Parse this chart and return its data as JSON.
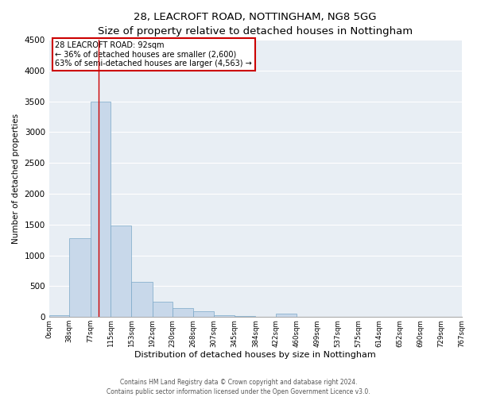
{
  "title": "28, LEACROFT ROAD, NOTTINGHAM, NG8 5GG",
  "subtitle": "Size of property relative to detached houses in Nottingham",
  "xlabel": "Distribution of detached houses by size in Nottingham",
  "ylabel": "Number of detached properties",
  "bar_color": "#c8d8ea",
  "bar_edge_color": "#7aa8c8",
  "background_color": "#e8eef4",
  "grid_color": "#ffffff",
  "redline_x": 92,
  "annotation_title": "28 LEACROFT ROAD: 92sqm",
  "annotation_line1": "← 36% of detached houses are smaller (2,600)",
  "annotation_line2": "63% of semi-detached houses are larger (4,563) →",
  "annotation_box_color": "#ffffff",
  "annotation_box_edge": "#cc0000",
  "redline_color": "#cc0000",
  "bin_edges": [
    0,
    38,
    77,
    115,
    153,
    192,
    230,
    268,
    307,
    345,
    384,
    422,
    460,
    499,
    537,
    575,
    614,
    652,
    690,
    729,
    767
  ],
  "bin_labels": [
    "0sqm",
    "38sqm",
    "77sqm",
    "115sqm",
    "153sqm",
    "192sqm",
    "230sqm",
    "268sqm",
    "307sqm",
    "345sqm",
    "384sqm",
    "422sqm",
    "460sqm",
    "499sqm",
    "537sqm",
    "575sqm",
    "614sqm",
    "652sqm",
    "690sqm",
    "729sqm",
    "767sqm"
  ],
  "bar_heights": [
    30,
    1280,
    3500,
    1480,
    570,
    250,
    145,
    90,
    30,
    15,
    5,
    55,
    0,
    0,
    0,
    0,
    0,
    0,
    0,
    0
  ],
  "ylim": [
    0,
    4500
  ],
  "yticks": [
    0,
    500,
    1000,
    1500,
    2000,
    2500,
    3000,
    3500,
    4000,
    4500
  ],
  "footer1": "Contains HM Land Registry data © Crown copyright and database right 2024.",
  "footer2": "Contains public sector information licensed under the Open Government Licence v3.0.",
  "title_fontsize": 9.5,
  "subtitle_fontsize": 8.5,
  "xlabel_fontsize": 8,
  "ylabel_fontsize": 7.5,
  "ytick_fontsize": 7.5,
  "xtick_fontsize": 6.2,
  "annotation_fontsize": 7.0,
  "footer_fontsize": 5.5
}
